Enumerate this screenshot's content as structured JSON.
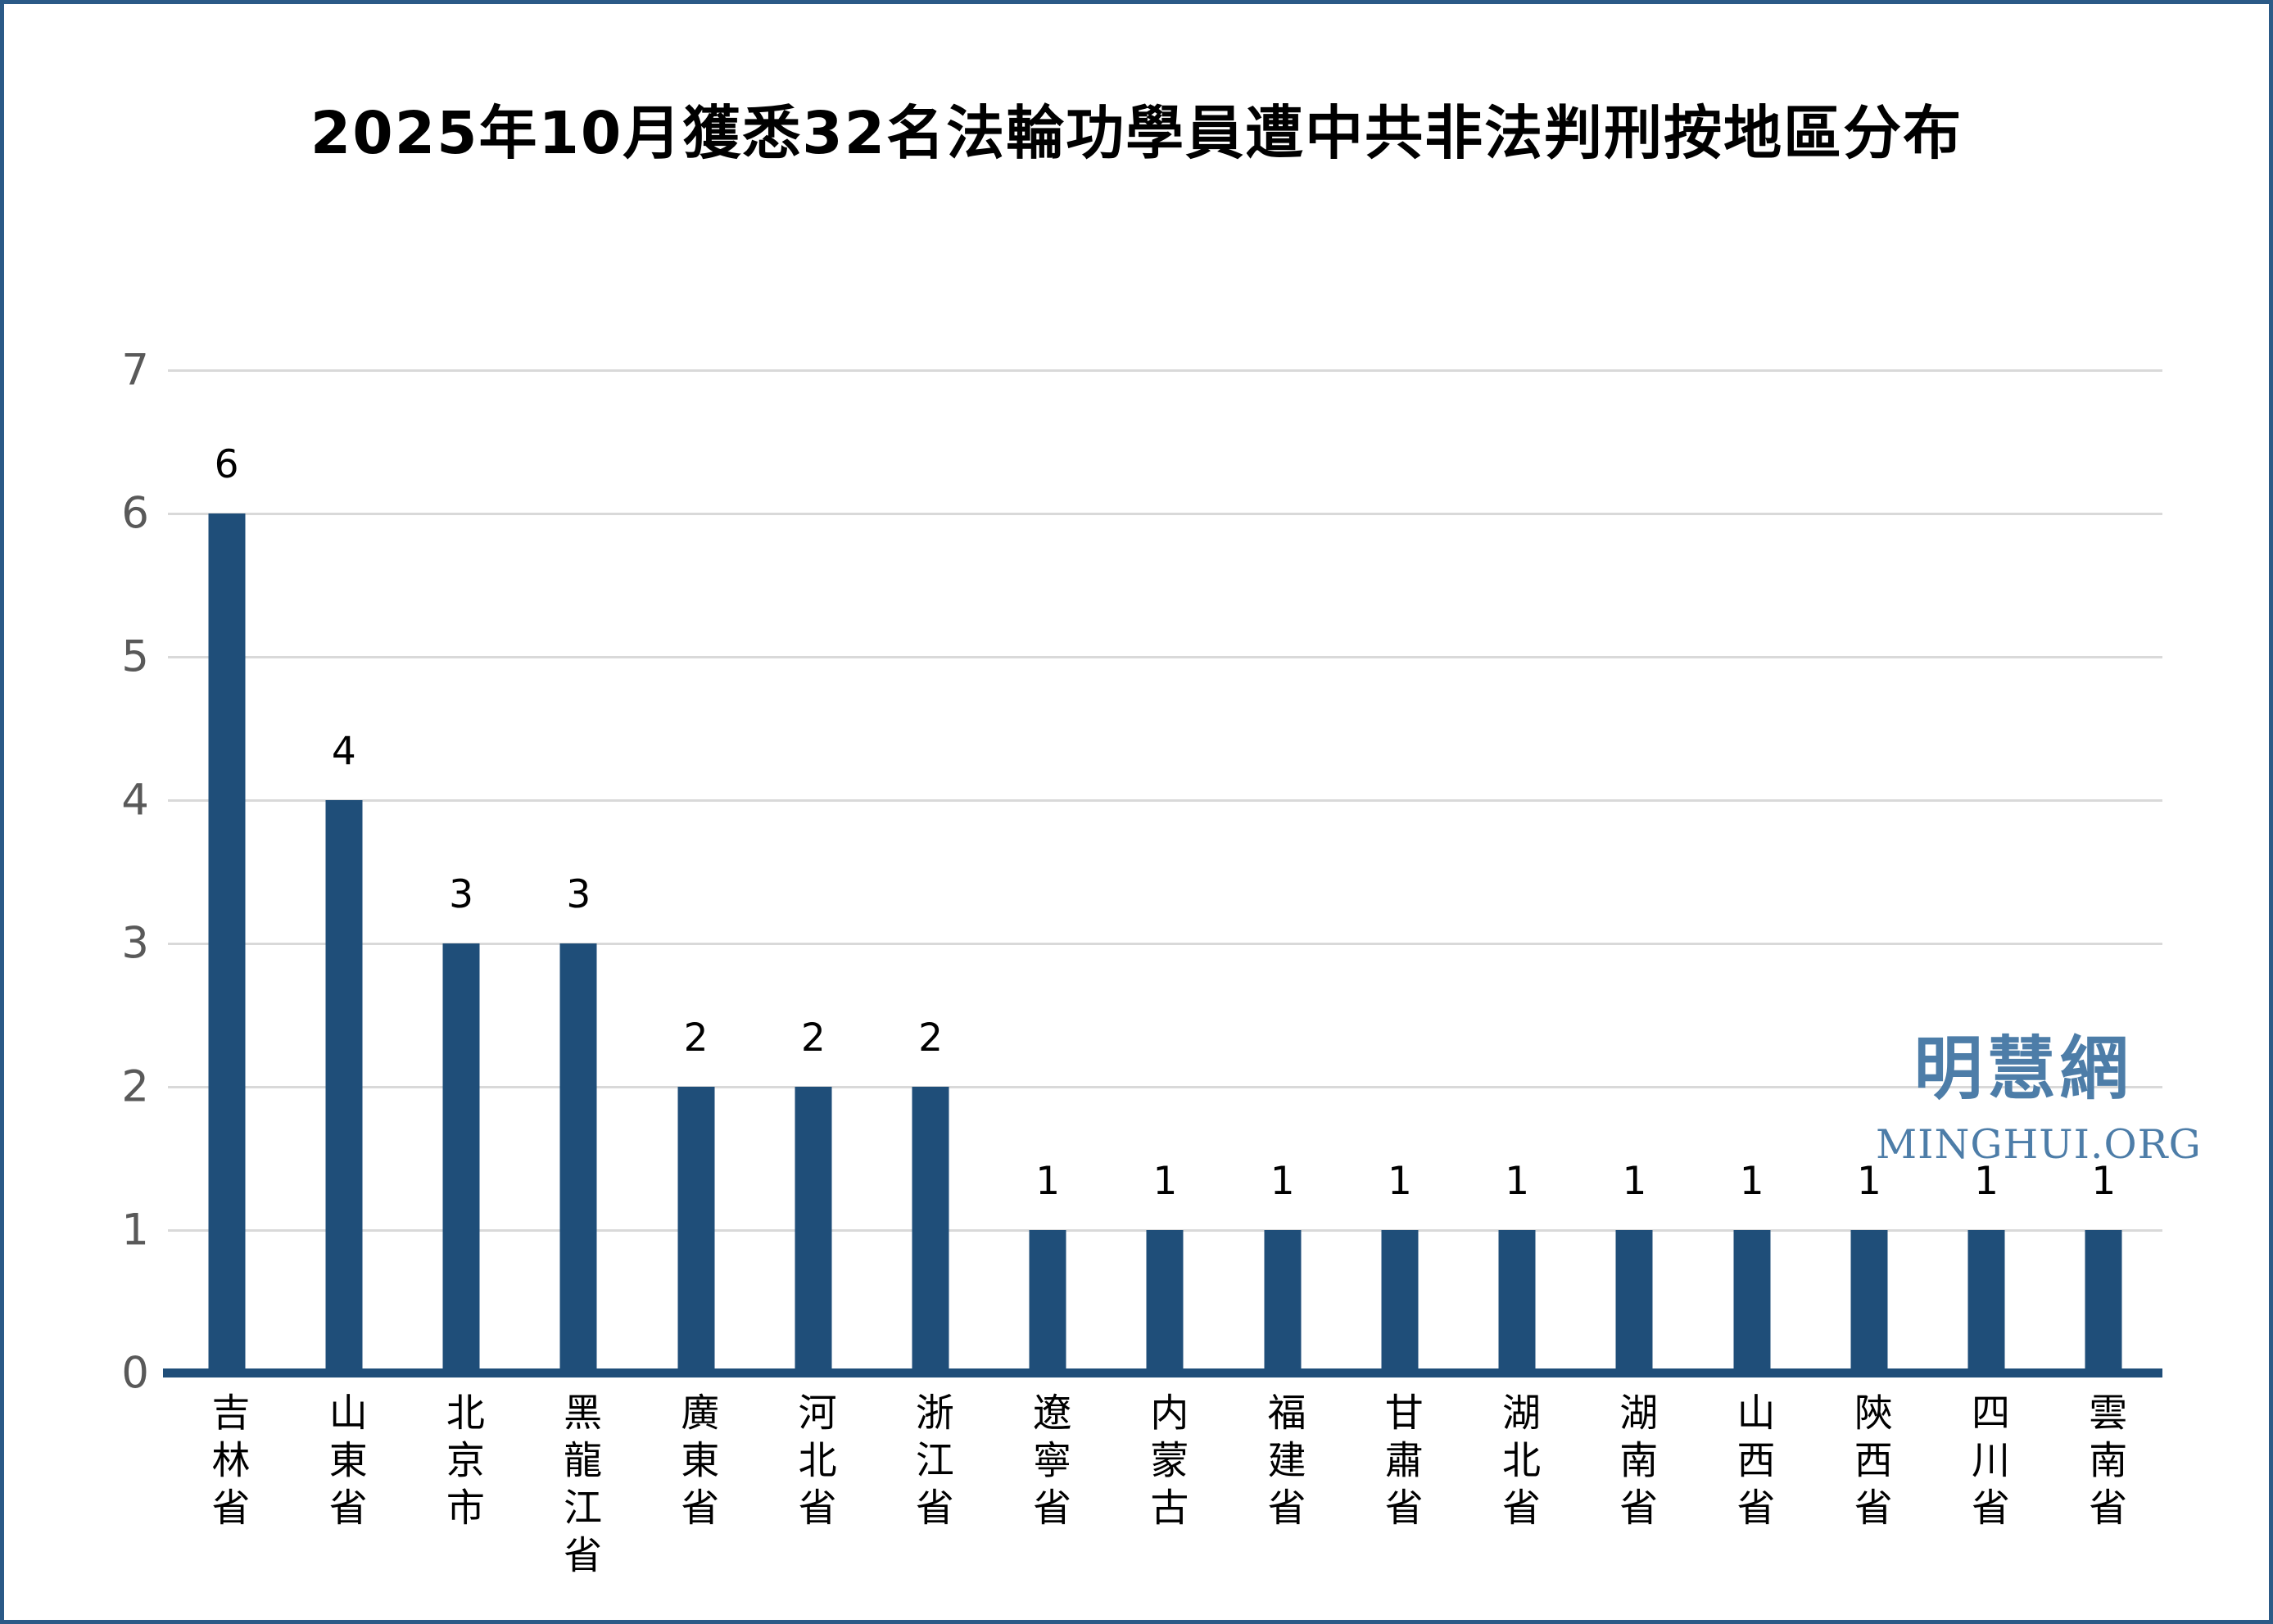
{
  "title": "2025年10月獲悉32名法輪功學員遭中共非法判刑按地區分布",
  "watermark": {
    "cn": "明慧網",
    "en": "MINGHUI.ORG"
  },
  "colors": {
    "bar": "#1F4E79",
    "axis_line": "#1F4E79",
    "gridline": "#D9D9D9",
    "tick_label": "#595959",
    "value_label": "#000000",
    "border": "#2B5A87",
    "watermark": "#4D7DA8",
    "background": "#FFFFFF"
  },
  "chart_data": {
    "type": "bar",
    "title": "2025年10月獲悉32名法輪功學員遭中共非法判刑按地區分布",
    "categories": [
      "吉林省",
      "山東省",
      "北京市",
      "黑龍江省",
      "廣東省",
      "河北省",
      "浙江省",
      "遼寧省",
      "内蒙古",
      "福建省",
      "甘肅省",
      "湖北省",
      "湖南省",
      "山西省",
      "陝西省",
      "四川省",
      "雲南省"
    ],
    "values": [
      6,
      4,
      3,
      3,
      2,
      2,
      2,
      1,
      1,
      1,
      1,
      1,
      1,
      1,
      1,
      1,
      1
    ],
    "total": 32,
    "xlabel": "",
    "ylabel": "",
    "ylim": [
      0,
      7
    ],
    "yticks": [
      0,
      1,
      2,
      3,
      4,
      5,
      6,
      7
    ],
    "grid": true,
    "legend": false,
    "data_labels": true,
    "bar_color": "#1F4E79"
  }
}
